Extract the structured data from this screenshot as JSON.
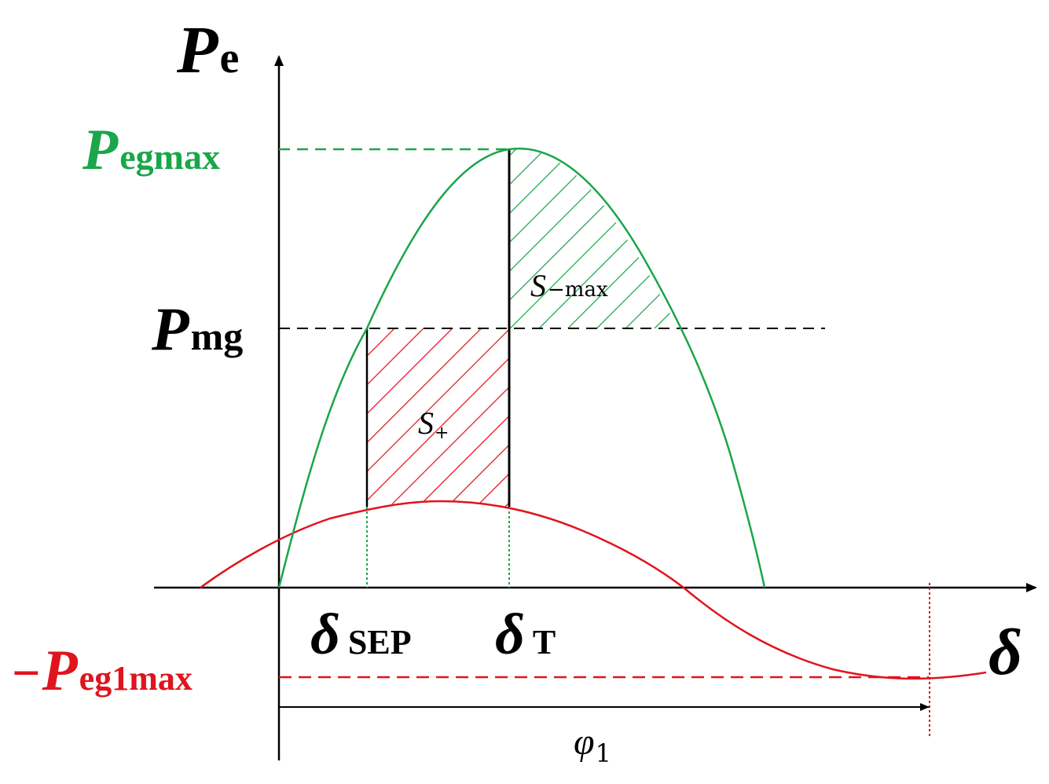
{
  "labels": {
    "pe_main": "P",
    "pe_sub": "e",
    "pegmax_main": "P",
    "pegmax_sub": "egmax",
    "pmg_main": "P",
    "pmg_sub": "mg",
    "peg1max_minus": "−",
    "peg1max_main": "P",
    "peg1max_sub": "eg1max",
    "delta_axis": "δ",
    "delta_sep_main": "δ",
    "delta_sep_sub": "SEP",
    "delta_t_main": "δ",
    "delta_t_sub": "T",
    "s_plus_main": "S",
    "s_plus_sub": "+",
    "s_minus_main": "S",
    "s_minus_sub": "−max",
    "phi_main": "φ",
    "phi_sub": "1"
  },
  "colors": {
    "axis": "#000000",
    "green": "#1aa64a",
    "red": "#e0141e",
    "black": "#000000"
  }
}
